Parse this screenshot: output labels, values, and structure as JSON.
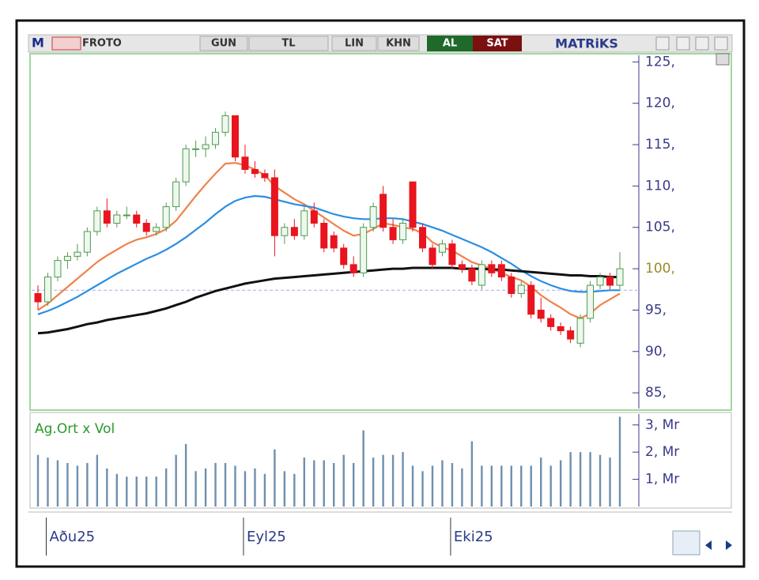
{
  "toolbar": {
    "logo": "M",
    "symbol": "FROTO",
    "buttons": [
      "GUN",
      "TL",
      "LIN",
      "KHN"
    ],
    "buy": "AL",
    "sell": "SAT",
    "brand": "MATRiKS"
  },
  "chart_data": [
    {
      "type": "candlestick",
      "categories": [
        null,
        "Aðu25",
        null,
        null,
        null,
        null,
        null,
        null,
        null,
        null,
        null,
        null,
        null,
        null,
        null,
        null,
        null,
        null,
        null,
        null,
        null,
        "Eyl25",
        null,
        null,
        null,
        null,
        null,
        null,
        null,
        null,
        null,
        null,
        null,
        null,
        null,
        null,
        null,
        null,
        null,
        null,
        null,
        null,
        "Eki25",
        null,
        null,
        null,
        null,
        null,
        null,
        null,
        null,
        null,
        null,
        null,
        null,
        null,
        null,
        null,
        null,
        null
      ],
      "open": [
        97,
        96,
        99,
        101,
        101.5,
        102,
        104.5,
        107,
        105.5,
        106.5,
        106.5,
        105.5,
        104.5,
        105,
        107.5,
        110.5,
        114.5,
        114.5,
        115,
        116.5,
        118.5,
        113.5,
        112,
        111.5,
        111,
        104,
        105,
        104,
        107,
        105.5,
        104,
        102.5,
        100.5,
        99.5,
        105,
        109,
        105,
        103.5,
        110.5,
        105,
        102.5,
        102,
        103,
        100.5,
        100,
        98,
        100.5,
        100.5,
        99,
        97,
        98,
        95,
        94,
        93,
        92.5,
        91,
        94,
        98,
        99,
        98
      ],
      "high": [
        98,
        99.5,
        101.5,
        102,
        103,
        105,
        107.5,
        108.5,
        107,
        107.5,
        107,
        106,
        105.5,
        108,
        111,
        115,
        115.5,
        116,
        117,
        119,
        118.5,
        115,
        113,
        112,
        112,
        105.5,
        106,
        107.5,
        108,
        106,
        104.5,
        103,
        101.5,
        105.5,
        108,
        110,
        106,
        106,
        110.5,
        105.5,
        103,
        103.5,
        103.5,
        101,
        100.5,
        101,
        101,
        101,
        99.5,
        98.5,
        98.5,
        96.5,
        94.5,
        93.5,
        93,
        94.5,
        98.5,
        99.5,
        99.5,
        102
      ],
      "low": [
        95,
        95.5,
        98.5,
        100,
        101,
        101.5,
        104,
        105,
        105,
        106,
        105,
        104,
        104,
        104.5,
        107,
        110,
        113.5,
        113.5,
        114.5,
        116,
        113,
        111.5,
        111,
        110.5,
        101.5,
        103,
        103.5,
        103.5,
        105,
        102,
        102,
        100,
        99,
        99,
        104.5,
        104.5,
        103,
        103,
        104.5,
        102,
        100,
        101.5,
        100,
        99.5,
        98,
        97.5,
        99,
        98.5,
        96.5,
        96.5,
        94,
        93.5,
        92.5,
        92,
        91,
        90.5,
        93.5,
        97.5,
        97.5,
        97.5
      ],
      "close": [
        96,
        99,
        101,
        101.5,
        102,
        104.5,
        107,
        105.5,
        106.5,
        106.5,
        105.5,
        104.5,
        105,
        107.5,
        110.5,
        114.5,
        114.5,
        115,
        116.5,
        118.5,
        113.5,
        112,
        111.5,
        111,
        104,
        105,
        104,
        107,
        105.5,
        102.5,
        102.5,
        100.5,
        99.5,
        105,
        107.5,
        105,
        103.5,
        105.5,
        105,
        102.5,
        100.5,
        103,
        100.5,
        100,
        98.5,
        100.5,
        99.5,
        99,
        97,
        98,
        94.5,
        94,
        93,
        92.5,
        91.5,
        94,
        98,
        99,
        98,
        100
      ],
      "up_color": "#4f9a4f",
      "down_color": "#e8141e",
      "series": [
        {
          "color": "#f0824a",
          "values": [
            95,
            95.8,
            96.8,
            97.8,
            98.8,
            99.8,
            100.8,
            101.6,
            102.3,
            103,
            103.5,
            103.8,
            104.2,
            104.8,
            105.8,
            107.3,
            108.8,
            110.2,
            111.5,
            112.7,
            112.8,
            112.5,
            112,
            111.3,
            110,
            109.2,
            108.4,
            107.8,
            107,
            106.2,
            105.4,
            104.6,
            104,
            104.2,
            104.8,
            105.5,
            105.3,
            105,
            104.8,
            104.3,
            103.2,
            102.6,
            102.2,
            101.5,
            100.8,
            100.4,
            100,
            99.5,
            99,
            98.6,
            97.8,
            96.8,
            96,
            95.3,
            94.5,
            94,
            94.6,
            95.6,
            96.3,
            97
          ]
        },
        {
          "color": "#2b8ee2",
          "values": [
            94.5,
            94.9,
            95.4,
            96,
            96.6,
            97.3,
            98,
            98.7,
            99.4,
            100,
            100.6,
            101.2,
            101.7,
            102.3,
            103,
            103.8,
            104.7,
            105.6,
            106.6,
            107.5,
            108.2,
            108.6,
            108.8,
            108.7,
            108.4,
            108.1,
            107.8,
            107.6,
            107.4,
            107,
            106.6,
            106.3,
            106.1,
            106,
            106,
            106.1,
            106.1,
            106,
            105.7,
            105.4,
            105,
            104.6,
            104.1,
            103.6,
            103.1,
            102.6,
            102,
            101.3,
            100.6,
            99.8,
            99.1,
            98.5,
            98,
            97.6,
            97.3,
            97.2,
            97.2,
            97.3,
            97.4,
            97.4
          ]
        },
        {
          "color": "#111111",
          "values": [
            92.2,
            92.3,
            92.5,
            92.7,
            93,
            93.3,
            93.5,
            93.8,
            94,
            94.2,
            94.4,
            94.6,
            94.9,
            95.2,
            95.6,
            96,
            96.5,
            96.9,
            97.3,
            97.6,
            97.9,
            98.2,
            98.4,
            98.6,
            98.8,
            98.9,
            99,
            99.1,
            99.2,
            99.3,
            99.4,
            99.5,
            99.6,
            99.7,
            99.8,
            99.9,
            100,
            100,
            100.1,
            100.1,
            100.1,
            100.1,
            100.1,
            100,
            100,
            100,
            99.9,
            99.9,
            99.8,
            99.7,
            99.6,
            99.5,
            99.4,
            99.3,
            99.2,
            99.2,
            99.1,
            99.1,
            99,
            99
          ]
        }
      ],
      "reference_line": 97.4,
      "ylim": [
        83.1,
        125.8
      ],
      "yticks": [
        {
          "value": 85,
          "label": "85,"
        },
        {
          "value": 90,
          "label": "90,"
        },
        {
          "value": 95,
          "label": "95,"
        },
        {
          "value": 100,
          "label": "100,"
        },
        {
          "value": 105,
          "label": "105,"
        },
        {
          "value": 110,
          "label": "110,"
        },
        {
          "value": 115,
          "label": "115,"
        },
        {
          "value": 120,
          "label": "120,"
        },
        {
          "value": 125,
          "label": "125,"
        }
      ]
    },
    {
      "type": "bar",
      "title": "Ag.Ort x Vol",
      "color": "#6f8fae",
      "values": [
        1.9,
        1.8,
        1.7,
        1.6,
        1.5,
        1.6,
        1.9,
        1.4,
        1.2,
        1.1,
        1.1,
        1.1,
        1.1,
        1.4,
        1.9,
        2.3,
        1.3,
        1.4,
        1.6,
        1.6,
        1.5,
        1.3,
        1.4,
        1.2,
        2.1,
        1.3,
        1.2,
        1.8,
        1.7,
        1.7,
        1.6,
        1.9,
        1.6,
        2.8,
        1.8,
        1.9,
        1.9,
        2.0,
        1.5,
        1.3,
        1.5,
        1.7,
        1.6,
        1.4,
        2.4,
        1.5,
        1.5,
        1.5,
        1.5,
        1.5,
        1.5,
        1.8,
        1.5,
        1.7,
        2.0,
        2.0,
        2.0,
        1.9,
        1.8,
        3.3
      ],
      "ylim": [
        0,
        3.4
      ],
      "yticks": [
        {
          "value": 1,
          "label": "1, Mr"
        },
        {
          "value": 2,
          "label": "2, Mr"
        },
        {
          "value": 3,
          "label": "3, Mr"
        }
      ]
    }
  ]
}
